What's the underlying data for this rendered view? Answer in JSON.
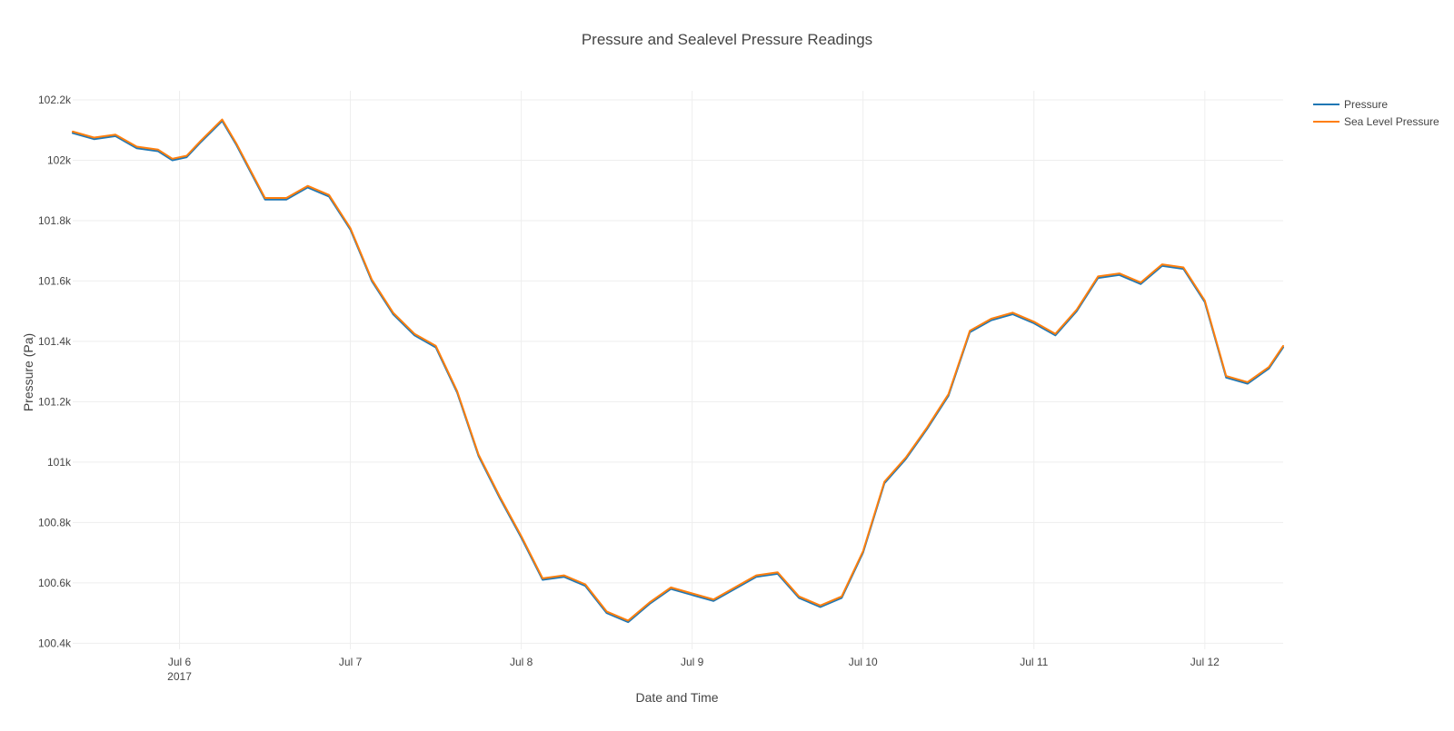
{
  "chart_data": {
    "type": "line",
    "title": "Pressure and Sealevel Pressure Readings",
    "xlabel": "Date and Time",
    "ylabel": "Pressure (Pa)",
    "x_range": [
      "2017-07-05 09:00",
      "2017-07-12 11:00"
    ],
    "ylim": [
      100380,
      102230
    ],
    "y_ticks": [
      100400,
      100600,
      100800,
      101000,
      101200,
      101400,
      101600,
      101800,
      102000,
      102200
    ],
    "y_tick_labels": [
      "100.4k",
      "100.6k",
      "100.8k",
      "101k",
      "101.2k",
      "101.4k",
      "101.6k",
      "101.8k",
      "102k",
      "102.2k"
    ],
    "x_ticks": [
      "2017-07-06 00:00",
      "2017-07-07 00:00",
      "2017-07-08 00:00",
      "2017-07-09 00:00",
      "2017-07-10 00:00",
      "2017-07-11 00:00",
      "2017-07-12 00:00"
    ],
    "x_tick_labels": [
      "Jul 6",
      "Jul 7",
      "Jul 8",
      "Jul 9",
      "Jul 10",
      "Jul 11",
      "Jul 12"
    ],
    "x_tick_year_label": "2017",
    "grid": true,
    "legend_position": "top-right",
    "x": [
      "2017-07-05 09:00",
      "2017-07-05 12:00",
      "2017-07-05 15:00",
      "2017-07-05 18:00",
      "2017-07-05 21:00",
      "2017-07-05 23:00",
      "2017-07-06 01:00",
      "2017-07-06 03:00",
      "2017-07-06 06:00",
      "2017-07-06 08:00",
      "2017-07-06 10:00",
      "2017-07-06 12:00",
      "2017-07-06 15:00",
      "2017-07-06 18:00",
      "2017-07-06 21:00",
      "2017-07-07 00:00",
      "2017-07-07 03:00",
      "2017-07-07 06:00",
      "2017-07-07 09:00",
      "2017-07-07 12:00",
      "2017-07-07 15:00",
      "2017-07-07 18:00",
      "2017-07-07 21:00",
      "2017-07-08 00:00",
      "2017-07-08 03:00",
      "2017-07-08 06:00",
      "2017-07-08 09:00",
      "2017-07-08 12:00",
      "2017-07-08 15:00",
      "2017-07-08 18:00",
      "2017-07-08 21:00",
      "2017-07-09 00:00",
      "2017-07-09 03:00",
      "2017-07-09 06:00",
      "2017-07-09 09:00",
      "2017-07-09 12:00",
      "2017-07-09 15:00",
      "2017-07-09 18:00",
      "2017-07-09 21:00",
      "2017-07-10 00:00",
      "2017-07-10 03:00",
      "2017-07-10 06:00",
      "2017-07-10 09:00",
      "2017-07-10 12:00",
      "2017-07-10 15:00",
      "2017-07-10 18:00",
      "2017-07-10 21:00",
      "2017-07-11 00:00",
      "2017-07-11 03:00",
      "2017-07-11 06:00",
      "2017-07-11 09:00",
      "2017-07-11 12:00",
      "2017-07-11 15:00",
      "2017-07-11 18:00",
      "2017-07-11 21:00",
      "2017-07-12 00:00",
      "2017-07-12 03:00",
      "2017-07-12 06:00",
      "2017-07-12 09:00",
      "2017-07-12 11:00"
    ],
    "series": [
      {
        "name": "Pressure",
        "color": "#1f77b4",
        "values": [
          102090,
          102070,
          102080,
          102040,
          102030,
          102000,
          102010,
          102060,
          102130,
          102050,
          101960,
          101870,
          101870,
          101910,
          101880,
          101770,
          101600,
          101490,
          101420,
          101380,
          101230,
          101020,
          100880,
          100750,
          100610,
          100620,
          100590,
          100500,
          100470,
          100530,
          100580,
          100560,
          100540,
          100580,
          100620,
          100630,
          100550,
          100520,
          100550,
          100700,
          100930,
          101010,
          101110,
          101220,
          101430,
          101470,
          101490,
          101460,
          101420,
          101500,
          101610,
          101620,
          101590,
          101650,
          101640,
          101530,
          101280,
          101260,
          101310,
          101380
        ]
      },
      {
        "name": "Sea Level Pressure",
        "color": "#ff7f0e",
        "values": [
          102095,
          102075,
          102085,
          102045,
          102035,
          102005,
          102015,
          102065,
          102135,
          102055,
          101965,
          101875,
          101875,
          101915,
          101885,
          101775,
          101605,
          101495,
          101425,
          101385,
          101235,
          101025,
          100885,
          100755,
          100615,
          100625,
          100595,
          100505,
          100475,
          100535,
          100585,
          100565,
          100545,
          100585,
          100625,
          100635,
          100555,
          100525,
          100555,
          100705,
          100935,
          101015,
          101115,
          101225,
          101435,
          101475,
          101495,
          101465,
          101425,
          101505,
          101615,
          101625,
          101595,
          101655,
          101645,
          101535,
          101285,
          101265,
          101315,
          101385
        ]
      }
    ]
  }
}
